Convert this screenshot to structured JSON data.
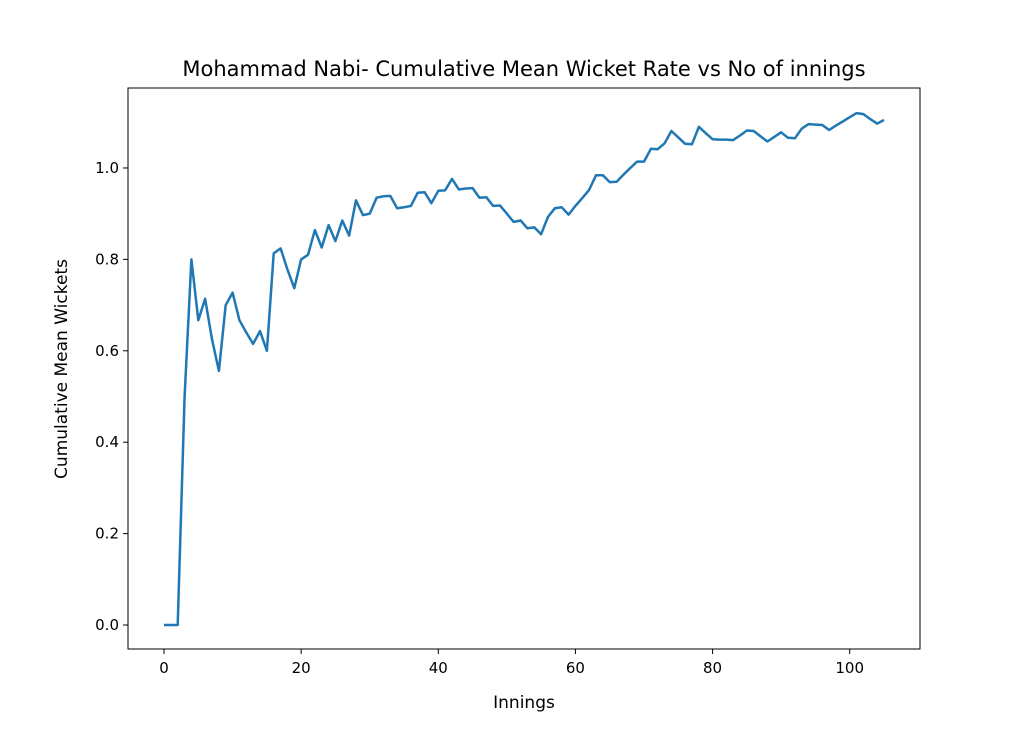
{
  "chart_data": {
    "type": "line",
    "title": "Mohammad Nabi- Cumulative Mean Wicket Rate vs No of innings",
    "xlabel": "Innings",
    "ylabel": "Cumulative Mean Wickets",
    "xlim": [
      -5.25,
      110.25
    ],
    "ylim": [
      -0.0525,
      1.175
    ],
    "xticks": [
      0,
      20,
      40,
      60,
      80,
      100
    ],
    "xtick_labels": [
      "0",
      "20",
      "40",
      "60",
      "80",
      "100"
    ],
    "yticks": [
      0.0,
      0.2,
      0.4,
      0.6,
      0.8,
      1.0
    ],
    "ytick_labels": [
      "0.0",
      "0.2",
      "0.4",
      "0.6",
      "0.8",
      "1.0"
    ],
    "grid": false,
    "line_color": "#1f77b4",
    "series": [
      {
        "x": [
          0,
          1,
          2,
          3,
          4,
          5,
          6,
          7,
          8,
          9,
          10,
          11,
          12,
          13,
          14,
          15,
          16,
          17,
          18,
          19,
          20,
          21,
          22,
          23,
          24,
          25,
          26,
          27,
          28,
          29,
          30,
          31,
          32,
          33,
          34,
          35,
          36,
          37,
          38,
          39,
          40,
          41,
          42,
          43,
          44,
          45,
          46,
          47,
          48,
          49,
          50,
          51,
          52,
          53,
          54,
          55,
          56,
          57,
          58,
          59,
          60,
          61,
          62,
          63,
          64,
          65,
          66,
          67,
          68,
          69,
          70,
          71,
          72,
          73,
          74,
          75,
          76,
          77,
          78,
          79,
          80,
          81,
          82,
          83,
          84,
          85,
          86,
          87,
          88,
          89,
          90,
          91,
          92,
          93,
          94,
          95,
          96,
          97,
          98,
          99,
          100,
          101,
          102,
          103,
          104,
          105
        ],
        "values": [
          0,
          0,
          0,
          0.5,
          0.8,
          0.667,
          0.714,
          0.625,
          0.556,
          0.7,
          0.727,
          0.667,
          0.64,
          0.615,
          0.643,
          0.6,
          0.813,
          0.824,
          0.778,
          0.737,
          0.8,
          0.81,
          0.864,
          0.826,
          0.875,
          0.84,
          0.885,
          0.852,
          0.929,
          0.897,
          0.9,
          0.935,
          0.938,
          0.939,
          0.912,
          0.914,
          0.917,
          0.946,
          0.947,
          0.923,
          0.95,
          0.951,
          0.976,
          0.953,
          0.955,
          0.956,
          0.935,
          0.936,
          0.917,
          0.918,
          0.9,
          0.882,
          0.885,
          0.868,
          0.87,
          0.855,
          0.893,
          0.912,
          0.914,
          0.898,
          0.917,
          0.934,
          0.952,
          0.984,
          0.984,
          0.969,
          0.97,
          0.985,
          1.0,
          1.014,
          1.014,
          1.042,
          1.041,
          1.054,
          1.081,
          1.067,
          1.053,
          1.052,
          1.09,
          1.076,
          1.063,
          1.062,
          1.062,
          1.061,
          1.071,
          1.082,
          1.081,
          1.069,
          1.058,
          1.068,
          1.078,
          1.066,
          1.065,
          1.086,
          1.096,
          1.095,
          1.094,
          1.083,
          1.093,
          1.102,
          1.111,
          1.12,
          1.118,
          1.107,
          1.097,
          1.105
        ]
      }
    ]
  }
}
